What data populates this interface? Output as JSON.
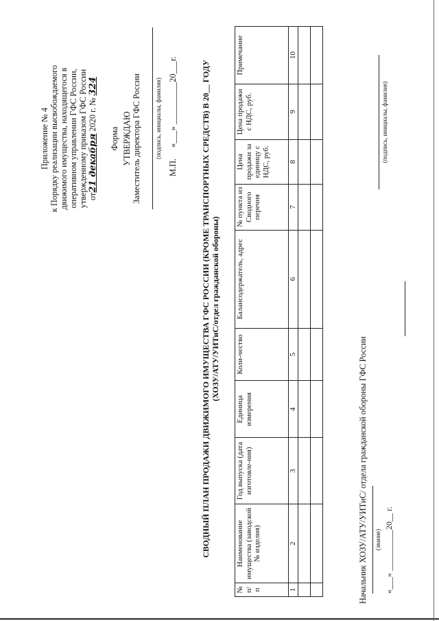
{
  "appendix": {
    "title": "Приложение № 4",
    "lines": [
      "к Порядку реализации высвобождаемого",
      "движимого имущества, находящегося в",
      "оперативном управлении ГФС России,",
      "утвержденному приказом ГФС России"
    ],
    "order_prefix": "от",
    "order_date_handwritten": "21 декабря",
    "order_year": "2020 г. №",
    "order_number_handwritten": "324"
  },
  "form_label": "Форма",
  "approval": {
    "heading": "УТВЕРЖДАЮ",
    "position": "Заместитель директора ГФС России",
    "signature_caption": "(подпись, инициалы, фамилия)",
    "seal": "М.П.",
    "date": "«___» __________20___г."
  },
  "title": {
    "line1": "СВОДНЫЙ ПЛАН ПРОДАЖИ ДВИЖИМОГО ИМУЩЕСТВА ГФС РОССИИ (КРОМЕ ТРАНСПОРТНЫХ СРЕДСТВ) В 20__ ГОДУ",
    "line2": "(ХОЗУ/АТУ/УИТиС/отдел гражданской обороны)"
  },
  "table": {
    "headers": [
      "№ п/п",
      "Наименование имущества (заводской № изделия)",
      "Год выпуска (дата изготовле-ния)",
      "Единица измерения",
      "Коли-чество",
      "Балансодержатель, адрес",
      "№ пункта из Сводного перечня",
      "Цена продажи за единицу с НДС, руб.",
      "Цена продажи с НДС, руб.",
      "Примечание"
    ],
    "numbers": [
      "1",
      "2",
      "3",
      "4",
      "5",
      "6",
      "7",
      "8",
      "9",
      "10"
    ]
  },
  "footer": {
    "position": "Начальник ХОЗУ/АТУ/УИТиС/ отдела гражданской обороны ГФС России",
    "rank_caption": "(звание)",
    "date": "«___» __________20__ г.",
    "signature_caption": "(подпись, инициалы, фамилия)"
  }
}
